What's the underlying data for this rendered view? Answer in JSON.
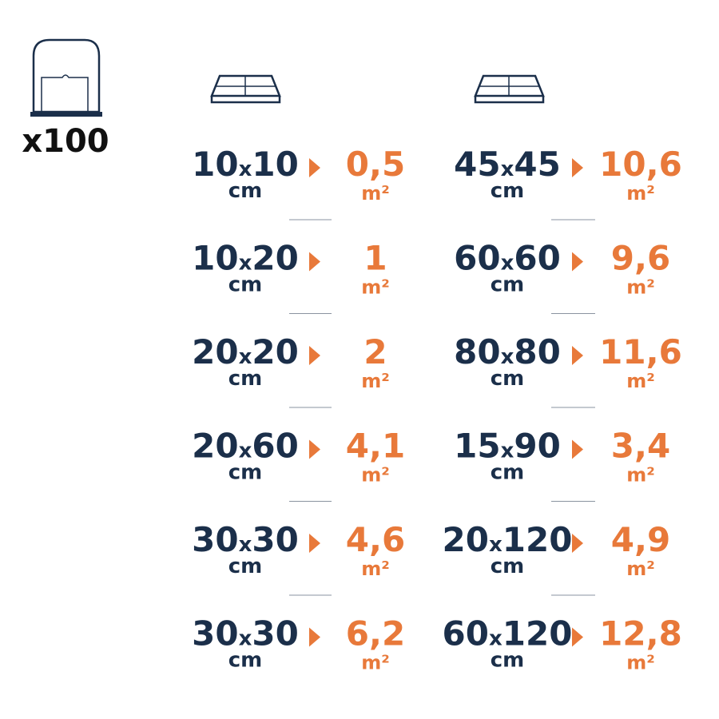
{
  "bag": {
    "count": "x100"
  },
  "size_separator": "x",
  "size_unit": "cm",
  "area_unit": "m²",
  "columns": [
    {
      "rows": [
        {
          "w": "10",
          "h": "10",
          "area": "0,5"
        },
        {
          "w": "10",
          "h": "20",
          "area": "1"
        },
        {
          "w": "20",
          "h": "20",
          "area": "2"
        },
        {
          "w": "20",
          "h": "60",
          "area": "4,1"
        },
        {
          "w": "30",
          "h": "30",
          "area": "4,6"
        },
        {
          "w": "30",
          "h": "30",
          "area": "6,2"
        }
      ]
    },
    {
      "rows": [
        {
          "w": "45",
          "h": "45",
          "area": "10,6"
        },
        {
          "w": "60",
          "h": "60",
          "area": "9,6"
        },
        {
          "w": "80",
          "h": "80",
          "area": "11,6"
        },
        {
          "w": "15",
          "h": "90",
          "area": "3,4"
        },
        {
          "w": "20",
          "h": "120",
          "area": "4,9"
        },
        {
          "w": "60",
          "h": "120",
          "area": "12,8"
        }
      ]
    }
  ]
}
